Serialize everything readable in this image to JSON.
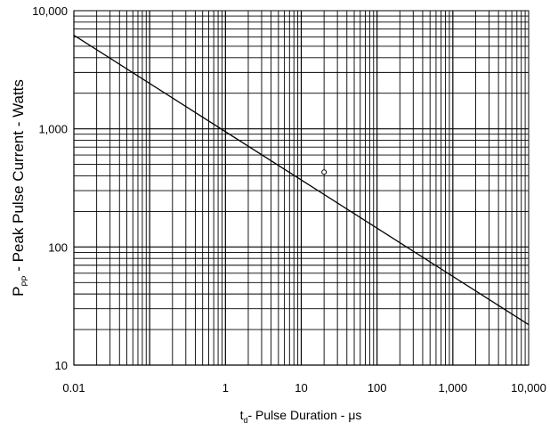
{
  "chart_data": {
    "type": "line",
    "x_scale": "log",
    "y_scale": "log",
    "xlim": [
      0.01,
      10000
    ],
    "ylim": [
      10,
      10000
    ],
    "grid": true,
    "x_ticks": [
      {
        "value": 0.01,
        "label": "0.01"
      },
      {
        "value": 1,
        "label": "1"
      },
      {
        "value": 10,
        "label": "10"
      },
      {
        "value": 100,
        "label": "100"
      },
      {
        "value": 1000,
        "label": "1,000"
      },
      {
        "value": 10000,
        "label": "10,000"
      }
    ],
    "y_ticks": [
      {
        "value": 10,
        "label": "10"
      },
      {
        "value": 100,
        "label": "100"
      },
      {
        "value": 1000,
        "label": "1,000"
      },
      {
        "value": 10000,
        "label": "10,000"
      }
    ],
    "xlabel": {
      "main": "t",
      "sub": "d",
      "rest": "- Pulse Duration - μs"
    },
    "ylabel": {
      "main": "P",
      "sub": "PP",
      "rest": " - Peak Pulse Current - Watts"
    },
    "series": [
      {
        "x": [
          0.01,
          10000
        ],
        "y": [
          6200,
          22
        ],
        "color": "#000000"
      }
    ],
    "markers": [
      {
        "x": 20,
        "y": 430
      }
    ]
  }
}
